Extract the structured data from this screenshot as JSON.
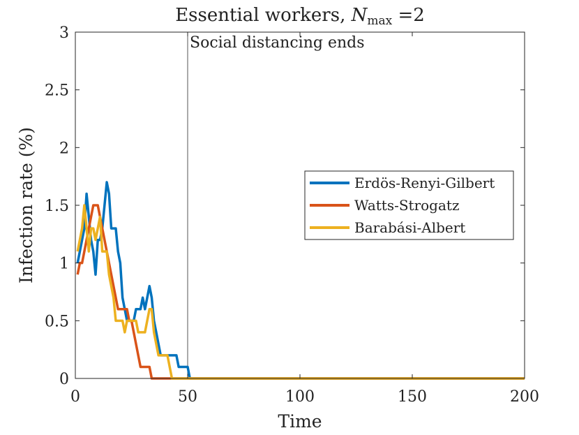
{
  "chart_data": {
    "type": "line",
    "title_prefix": "Essential workers, ",
    "title_var": "N",
    "title_sub": "max",
    "title_suffix": " =2",
    "xlabel": "Time",
    "ylabel": "Infection rate (%)",
    "xlim": [
      0,
      200
    ],
    "ylim": [
      0,
      3
    ],
    "xticks": [
      0,
      50,
      100,
      150,
      200
    ],
    "xtick_labels": [
      "0",
      "50",
      "100",
      "150",
      "200"
    ],
    "yticks": [
      0,
      0.5,
      1,
      1.5,
      2,
      2.5,
      3
    ],
    "ytick_labels": [
      "0",
      "0.5",
      "1",
      "1.5",
      "2",
      "2.5",
      "3"
    ],
    "grid": false,
    "legend_position": "right",
    "annotation": {
      "text": "Social distancing ends",
      "x": 50
    },
    "series": [
      {
        "name": "Erdös-Renyi-Gilbert",
        "color": "#0072BD",
        "points": [
          [
            1,
            1.0
          ],
          [
            2,
            1.1
          ],
          [
            3,
            1.2
          ],
          [
            4,
            1.3
          ],
          [
            5,
            1.6
          ],
          [
            6,
            1.4
          ],
          [
            7,
            1.2
          ],
          [
            8,
            1.1
          ],
          [
            9,
            0.9
          ],
          [
            10,
            1.2
          ],
          [
            11,
            1.2
          ],
          [
            12,
            1.3
          ],
          [
            13,
            1.5
          ],
          [
            14,
            1.7
          ],
          [
            15,
            1.6
          ],
          [
            16,
            1.3
          ],
          [
            17,
            1.3
          ],
          [
            18,
            1.3
          ],
          [
            19,
            1.1
          ],
          [
            20,
            1.0
          ],
          [
            21,
            0.7
          ],
          [
            22,
            0.6
          ],
          [
            23,
            0.5
          ],
          [
            24,
            0.5
          ],
          [
            25,
            0.5
          ],
          [
            26,
            0.5
          ],
          [
            27,
            0.6
          ],
          [
            28,
            0.6
          ],
          [
            29,
            0.6
          ],
          [
            30,
            0.7
          ],
          [
            31,
            0.6
          ],
          [
            32,
            0.7
          ],
          [
            33,
            0.8
          ],
          [
            34,
            0.7
          ],
          [
            35,
            0.5
          ],
          [
            36,
            0.4
          ],
          [
            37,
            0.3
          ],
          [
            38,
            0.2
          ],
          [
            39,
            0.2
          ],
          [
            40,
            0.2
          ],
          [
            45,
            0.2
          ],
          [
            46,
            0.1
          ],
          [
            47,
            0.1
          ],
          [
            50,
            0.1
          ],
          [
            51,
            0.0
          ],
          [
            200,
            0.0
          ]
        ]
      },
      {
        "name": "Watts-Strogatz",
        "color": "#D95319",
        "points": [
          [
            1,
            0.9
          ],
          [
            2,
            1.0
          ],
          [
            3,
            1.0
          ],
          [
            4,
            1.1
          ],
          [
            5,
            1.2
          ],
          [
            6,
            1.3
          ],
          [
            7,
            1.4
          ],
          [
            8,
            1.5
          ],
          [
            9,
            1.5
          ],
          [
            10,
            1.5
          ],
          [
            11,
            1.4
          ],
          [
            12,
            1.3
          ],
          [
            13,
            1.2
          ],
          [
            14,
            1.1
          ],
          [
            15,
            1.0
          ],
          [
            16,
            0.9
          ],
          [
            17,
            0.8
          ],
          [
            18,
            0.7
          ],
          [
            19,
            0.6
          ],
          [
            20,
            0.6
          ],
          [
            21,
            0.6
          ],
          [
            22,
            0.6
          ],
          [
            23,
            0.6
          ],
          [
            24,
            0.5
          ],
          [
            25,
            0.5
          ],
          [
            26,
            0.4
          ],
          [
            27,
            0.3
          ],
          [
            28,
            0.2
          ],
          [
            29,
            0.1
          ],
          [
            30,
            0.1
          ],
          [
            31,
            0.1
          ],
          [
            32,
            0.1
          ],
          [
            33,
            0.1
          ],
          [
            34,
            0.0
          ],
          [
            200,
            0.0
          ]
        ]
      },
      {
        "name": "Barabási-Albert",
        "color": "#EDB120",
        "points": [
          [
            1,
            1.1
          ],
          [
            2,
            1.2
          ],
          [
            3,
            1.3
          ],
          [
            4,
            1.5
          ],
          [
            5,
            1.3
          ],
          [
            6,
            1.1
          ],
          [
            7,
            1.3
          ],
          [
            8,
            1.3
          ],
          [
            9,
            1.2
          ],
          [
            10,
            1.3
          ],
          [
            11,
            1.4
          ],
          [
            12,
            1.1
          ],
          [
            13,
            1.1
          ],
          [
            14,
            1.1
          ],
          [
            15,
            0.9
          ],
          [
            16,
            0.8
          ],
          [
            17,
            0.7
          ],
          [
            18,
            0.5
          ],
          [
            19,
            0.5
          ],
          [
            20,
            0.5
          ],
          [
            21,
            0.5
          ],
          [
            22,
            0.4
          ],
          [
            23,
            0.5
          ],
          [
            24,
            0.5
          ],
          [
            25,
            0.5
          ],
          [
            26,
            0.5
          ],
          [
            27,
            0.5
          ],
          [
            28,
            0.4
          ],
          [
            29,
            0.4
          ],
          [
            30,
            0.4
          ],
          [
            31,
            0.4
          ],
          [
            32,
            0.5
          ],
          [
            33,
            0.6
          ],
          [
            34,
            0.6
          ],
          [
            35,
            0.4
          ],
          [
            36,
            0.3
          ],
          [
            37,
            0.2
          ],
          [
            38,
            0.2
          ],
          [
            39,
            0.2
          ],
          [
            40,
            0.2
          ],
          [
            41,
            0.2
          ],
          [
            42,
            0.1
          ],
          [
            43,
            0.0
          ],
          [
            200,
            0.0
          ]
        ]
      }
    ]
  }
}
